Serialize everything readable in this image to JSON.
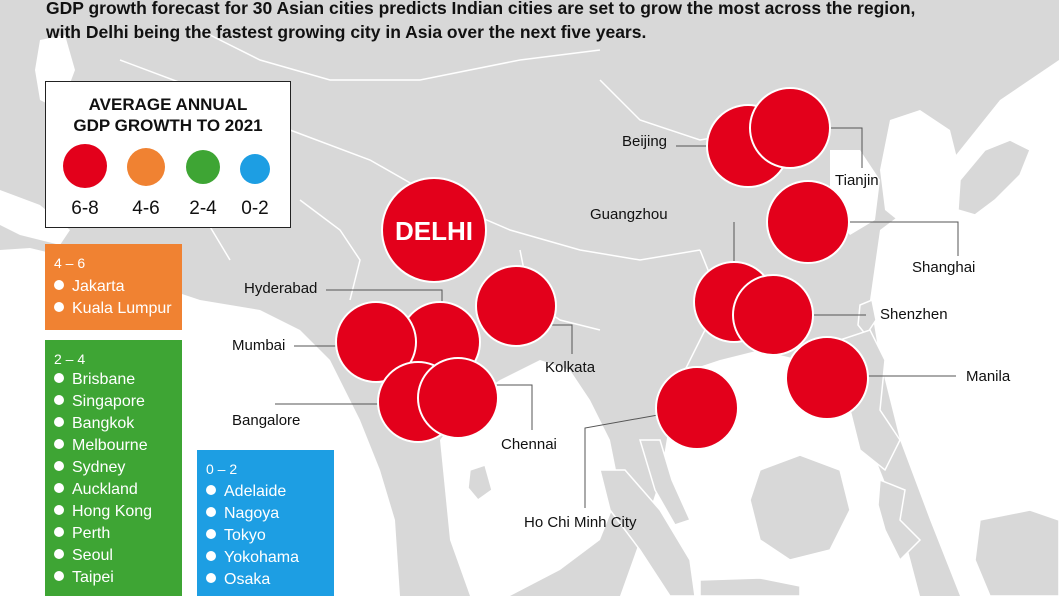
{
  "header": {
    "line1": "GDP growth forecast for 30 Asian cities predicts Indian cities are set to grow the most across the region,",
    "line2": "with Delhi being the fastest growing city in Asia over the next five years."
  },
  "legend": {
    "title_line1": "AVERAGE ANNUAL",
    "title_line2": "GDP GROWTH TO 2021",
    "items": [
      {
        "range": "6-8",
        "color": "#e3001b"
      },
      {
        "range": "4-6",
        "color": "#f08232"
      },
      {
        "range": "2-4",
        "color": "#3ea534"
      },
      {
        "range": "0-2",
        "color": "#1d9ee3"
      }
    ]
  },
  "colors": {
    "sea": "#ffffff",
    "land": "#d8d8d8",
    "border": "#ffffff",
    "bubble": "#e3001b",
    "leader": "#555555"
  },
  "boxes": [
    {
      "range": "4 – 6",
      "color": "#f08232",
      "cities": [
        "Jakarta",
        "Kuala Lumpur"
      ]
    },
    {
      "range": "2 – 4",
      "color": "#3ea534",
      "cities": [
        "Brisbane",
        "Singapore",
        "Bangkok",
        "Melbourne",
        "Sydney",
        "Auckland",
        "Hong Kong",
        "Perth",
        "Seoul",
        "Taipei"
      ]
    },
    {
      "range": "0 – 2",
      "color": "#1d9ee3",
      "cities": [
        "Adelaide",
        "Nagoya",
        "Tokyo",
        "Yokohama",
        "Osaka"
      ]
    }
  ],
  "map": {
    "delhi_label": "DELHI",
    "cities": [
      "Beijing",
      "Tianjin",
      "Guangzhou",
      "Shanghai",
      "Hyderabad",
      "Shenzhen",
      "Mumbai",
      "Kolkata",
      "Manila",
      "Bangalore",
      "Chennai",
      "Ho Chi Minh City"
    ]
  }
}
